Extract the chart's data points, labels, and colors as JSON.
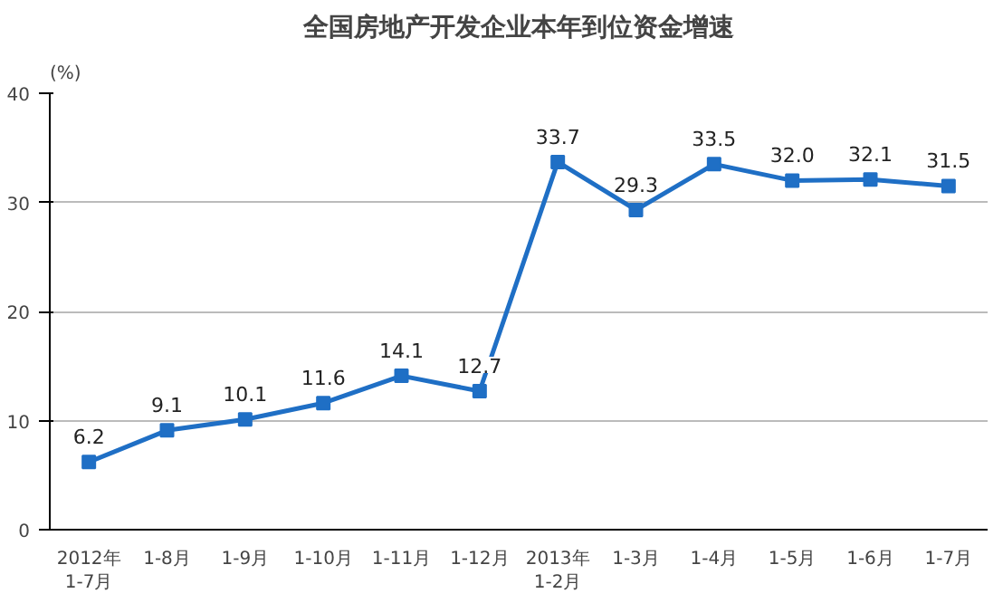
{
  "chart_data": {
    "type": "line",
    "title": "全国房地产开发企业本年到位资金增速",
    "ylabel": "(%)",
    "categories": [
      "2012年\n1-7月",
      "1-8月",
      "1-9月",
      "1-10月",
      "1-11月",
      "1-12月",
      "2013年\n1-2月",
      "1-3月",
      "1-4月",
      "1-5月",
      "1-6月",
      "1-7月"
    ],
    "series": [
      {
        "color": "#1f6fc5",
        "values": [
          6.2,
          9.1,
          10.1,
          11.6,
          14.1,
          12.7,
          33.7,
          29.3,
          33.5,
          32.0,
          32.1,
          31.5
        ],
        "value_labels": [
          "6.2",
          "9.1",
          "10.1",
          "11.6",
          "14.1",
          "12.7",
          "33.7",
          "29.3",
          "33.5",
          "32.0",
          "32.1",
          "31.5"
        ]
      }
    ],
    "ylim": [
      0,
      40
    ],
    "yticks": [
      0,
      10,
      20,
      30,
      40
    ],
    "grid": "y",
    "marker": "square",
    "line_style": "solid"
  }
}
